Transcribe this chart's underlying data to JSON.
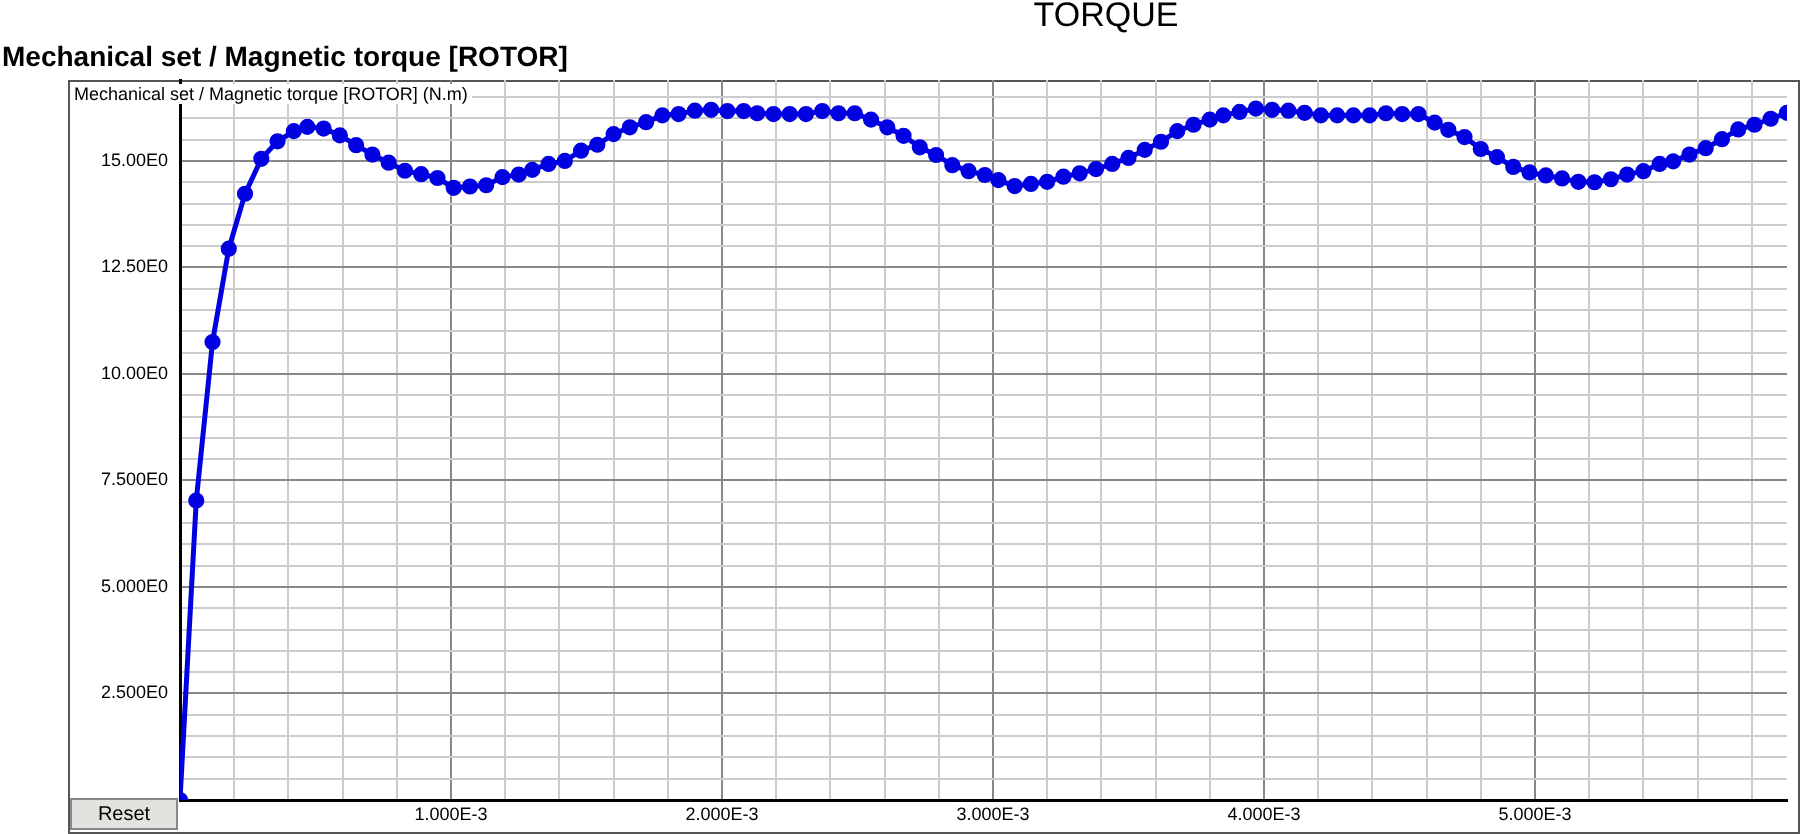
{
  "chart_data": {
    "type": "line",
    "title": "TORQUE",
    "subtitle": "Mechanical set / Magnetic torque [ROTOR]",
    "ylabel": "Mechanical set / Magnetic torque [ROTOR] (N.m)",
    "annotations": [
      "Reset"
    ],
    "x": [
      0,
      6e-05,
      0.00012,
      0.00018,
      0.00024,
      0.0003,
      0.00036,
      0.00042,
      0.00047,
      0.00053,
      0.00059,
      0.00065,
      0.00071,
      0.00077,
      0.00083,
      0.00089,
      0.00095,
      0.00101,
      0.00107,
      0.00113,
      0.00119,
      0.00125,
      0.0013,
      0.00136,
      0.00142,
      0.00148,
      0.00154,
      0.0016,
      0.00166,
      0.00172,
      0.00178,
      0.00184,
      0.0019,
      0.00196,
      0.00202,
      0.00208,
      0.00213,
      0.00219,
      0.00225,
      0.00231,
      0.00237,
      0.00243,
      0.00249,
      0.00255,
      0.00261,
      0.00267,
      0.00273,
      0.00279,
      0.00285,
      0.00291,
      0.00297,
      0.00302,
      0.00308,
      0.00314,
      0.0032,
      0.00326,
      0.00332,
      0.00338,
      0.00344,
      0.0035,
      0.00356,
      0.00362,
      0.00368,
      0.00374,
      0.0038,
      0.00385,
      0.00391,
      0.00397,
      0.00403,
      0.00409,
      0.00415,
      0.00421,
      0.00427,
      0.00433,
      0.00439,
      0.00445,
      0.00451,
      0.00457,
      0.00463,
      0.00468,
      0.00474,
      0.0048,
      0.00486,
      0.00492,
      0.00498,
      0.00504,
      0.0051,
      0.00516,
      0.00522,
      0.00528,
      0.00534,
      0.0054,
      0.00546,
      0.00551,
      0.00557,
      0.00563,
      0.00569,
      0.00575,
      0.00581,
      0.00587,
      0.00593
    ],
    "series": [
      {
        "color": "#0000e0",
        "values": [
          0,
          7.03,
          10.75,
          12.94,
          14.23,
          15.05,
          15.46,
          15.7,
          15.8,
          15.76,
          15.6,
          15.37,
          15.15,
          14.96,
          14.77,
          14.69,
          14.6,
          14.37,
          14.4,
          14.43,
          14.62,
          14.68,
          14.79,
          14.93,
          15.0,
          15.24,
          15.38,
          15.63,
          15.79,
          15.91,
          16.07,
          16.1,
          16.18,
          16.2,
          16.17,
          16.17,
          16.12,
          16.1,
          16.1,
          16.1,
          16.17,
          16.12,
          16.12,
          15.97,
          15.79,
          15.59,
          15.32,
          15.14,
          14.9,
          14.76,
          14.67,
          14.55,
          14.41,
          14.46,
          14.51,
          14.63,
          14.71,
          14.81,
          14.93,
          15.07,
          15.26,
          15.45,
          15.7,
          15.85,
          15.97,
          16.07,
          16.15,
          16.23,
          16.2,
          16.18,
          16.13,
          16.07,
          16.07,
          16.07,
          16.07,
          16.12,
          16.1,
          16.1,
          15.9,
          15.73,
          15.56,
          15.28,
          15.09,
          14.86,
          14.73,
          14.66,
          14.59,
          14.51,
          14.5,
          14.57,
          14.68,
          14.76,
          14.93,
          14.99,
          15.15,
          15.3,
          15.51,
          15.74,
          15.85,
          15.99,
          16.13
        ]
      }
    ],
    "xlim": [
      0,
      0.00593
    ],
    "ylim": [
      0,
      16.9
    ],
    "xticks": [
      {
        "value": 0,
        "label": null
      },
      {
        "value": 0.0002,
        "label": null
      },
      {
        "value": 0.0004,
        "label": null
      },
      {
        "value": 0.0006,
        "label": null
      },
      {
        "value": 0.0008,
        "label": null
      },
      {
        "value": 0.001,
        "label": "1.000E-3"
      },
      {
        "value": 0.0012,
        "label": null
      },
      {
        "value": 0.0014,
        "label": null
      },
      {
        "value": 0.0016,
        "label": null
      },
      {
        "value": 0.0018,
        "label": null
      },
      {
        "value": 0.002,
        "label": "2.000E-3"
      },
      {
        "value": 0.0022,
        "label": null
      },
      {
        "value": 0.0024,
        "label": null
      },
      {
        "value": 0.0026,
        "label": null
      },
      {
        "value": 0.0028,
        "label": null
      },
      {
        "value": 0.003,
        "label": "3.000E-3"
      },
      {
        "value": 0.0032,
        "label": null
      },
      {
        "value": 0.0034,
        "label": null
      },
      {
        "value": 0.0036,
        "label": null
      },
      {
        "value": 0.0038,
        "label": null
      },
      {
        "value": 0.004,
        "label": "4.000E-3"
      },
      {
        "value": 0.0042,
        "label": null
      },
      {
        "value": 0.0044,
        "label": null
      },
      {
        "value": 0.0046,
        "label": null
      },
      {
        "value": 0.0048,
        "label": null
      },
      {
        "value": 0.005,
        "label": "5.000E-3"
      },
      {
        "value": 0.0052,
        "label": null
      },
      {
        "value": 0.0054,
        "label": null
      },
      {
        "value": 0.0056,
        "label": null
      },
      {
        "value": 0.0058,
        "label": null
      }
    ],
    "yticks": [
      {
        "value": 0,
        "label": null
      },
      {
        "value": 0.5,
        "label": null
      },
      {
        "value": 1,
        "label": null
      },
      {
        "value": 1.5,
        "label": null
      },
      {
        "value": 2,
        "label": null
      },
      {
        "value": 2.5,
        "label": "2.500E0"
      },
      {
        "value": 3,
        "label": null
      },
      {
        "value": 3.5,
        "label": null
      },
      {
        "value": 4,
        "label": null
      },
      {
        "value": 4.5,
        "label": null
      },
      {
        "value": 5,
        "label": "5.000E0"
      },
      {
        "value": 5.5,
        "label": null
      },
      {
        "value": 6,
        "label": null
      },
      {
        "value": 6.5,
        "label": null
      },
      {
        "value": 7,
        "label": null
      },
      {
        "value": 7.5,
        "label": "7.500E0"
      },
      {
        "value": 8,
        "label": null
      },
      {
        "value": 8.5,
        "label": null
      },
      {
        "value": 9,
        "label": null
      },
      {
        "value": 9.5,
        "label": null
      },
      {
        "value": 10,
        "label": "10.00E0"
      },
      {
        "value": 10.5,
        "label": null
      },
      {
        "value": 11,
        "label": null
      },
      {
        "value": 11.5,
        "label": null
      },
      {
        "value": 12,
        "label": null
      },
      {
        "value": 12.5,
        "label": "12.50E0"
      },
      {
        "value": 13,
        "label": null
      },
      {
        "value": 13.5,
        "label": null
      },
      {
        "value": 14,
        "label": null
      },
      {
        "value": 14.5,
        "label": null
      },
      {
        "value": 15,
        "label": "15.00E0"
      },
      {
        "value": 15.5,
        "label": null
      },
      {
        "value": 16,
        "label": null
      },
      {
        "value": 16.5,
        "label": null
      }
    ],
    "grid": true,
    "legend": false,
    "marker": "circle",
    "line_style": "solid"
  }
}
